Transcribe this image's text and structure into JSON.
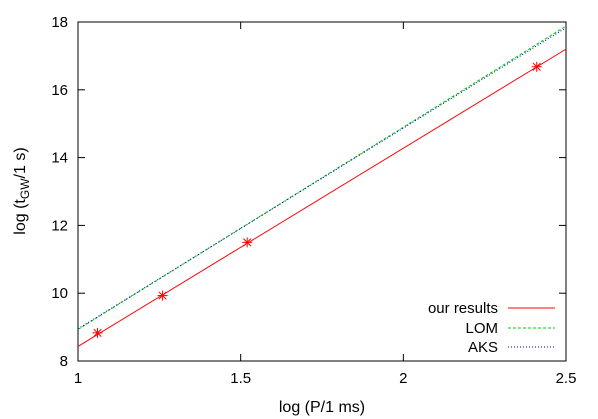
{
  "chart_data": {
    "type": "line",
    "xlabel": "log (P/1 ms)",
    "ylabel_main": "log (t",
    "ylabel_sub": "GW",
    "ylabel_tail": "/1 s)",
    "xlim": [
      1,
      2.5
    ],
    "ylim": [
      8,
      18
    ],
    "xticks": [
      {
        "value": 1,
        "label": "1"
      },
      {
        "value": 1.5,
        "label": "1.5"
      },
      {
        "value": 2,
        "label": "2"
      },
      {
        "value": 2.5,
        "label": "2.5"
      }
    ],
    "yticks": [
      {
        "value": 8,
        "label": "8"
      },
      {
        "value": 10,
        "label": "10"
      },
      {
        "value": 12,
        "label": "12"
      },
      {
        "value": 14,
        "label": "14"
      },
      {
        "value": 16,
        "label": "16"
      },
      {
        "value": 18,
        "label": "18"
      }
    ],
    "grid": false,
    "legend_position": "bottom-right",
    "series": [
      {
        "name": "our results",
        "color": "#ff0000",
        "style": "solid",
        "x": [
          1,
          2.5
        ],
        "y": [
          8.43,
          17.2
        ]
      },
      {
        "name": "LOM",
        "color": "#00cc00",
        "style": "dashed",
        "x": [
          1,
          2.5
        ],
        "y": [
          8.93,
          17.88
        ]
      },
      {
        "name": "AKS",
        "color": "#0000cc",
        "style": "dotted",
        "x": [
          1,
          2.5
        ],
        "y": [
          8.95,
          17.83
        ]
      }
    ],
    "points": {
      "color": "#ff0000",
      "marker": "star",
      "x": [
        1.06,
        1.26,
        1.52,
        2.41
      ],
      "y": [
        8.83,
        9.93,
        11.5,
        16.68
      ]
    }
  }
}
